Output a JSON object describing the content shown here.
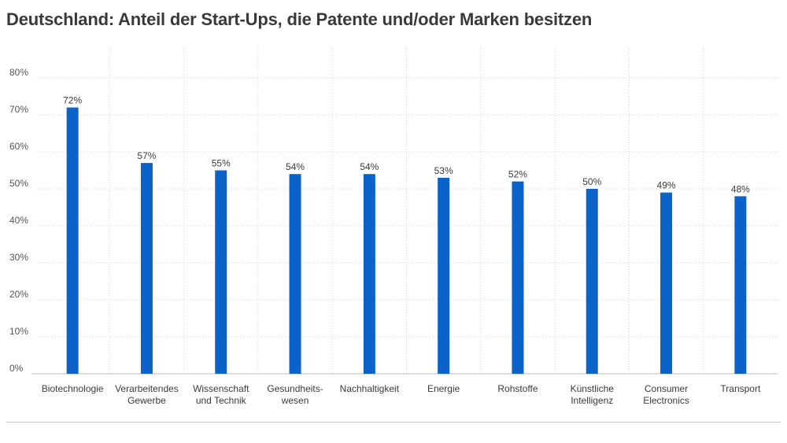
{
  "colors": {
    "bar": "#0b63c9",
    "grid": "#d7d7d7",
    "axis": "#bdbdbd"
  },
  "chart_data": {
    "type": "bar",
    "title": "Deutschland: Anteil der Start-Ups, die Patente und/oder Marken besitzen",
    "xlabel": "",
    "ylabel": "",
    "ylim": [
      0,
      80
    ],
    "yticks": [
      0,
      10,
      20,
      30,
      40,
      50,
      60,
      70,
      80
    ],
    "ytick_labels": [
      "0%",
      "10%",
      "20%",
      "30%",
      "40%",
      "50%",
      "60%",
      "70%",
      "80%"
    ],
    "grid": true,
    "legend": "none",
    "categories": [
      [
        "Biotechnologie"
      ],
      [
        "Verarbeitendes",
        "Gewerbe"
      ],
      [
        "Wissenschaft",
        "und Technik"
      ],
      [
        "Gesundheits-",
        "wesen"
      ],
      [
        "Nachhaltigkeit"
      ],
      [
        "Energie"
      ],
      [
        "Rohstoffe"
      ],
      [
        "Künstliche",
        "Intelligenz"
      ],
      [
        "Consumer",
        "Electronics"
      ],
      [
        "Transport"
      ]
    ],
    "values": [
      72,
      57,
      55,
      54,
      54,
      53,
      52,
      50,
      49,
      48
    ],
    "value_labels": [
      "72%",
      "57%",
      "55%",
      "54%",
      "54%",
      "53%",
      "52%",
      "50%",
      "49%",
      "48%"
    ]
  }
}
